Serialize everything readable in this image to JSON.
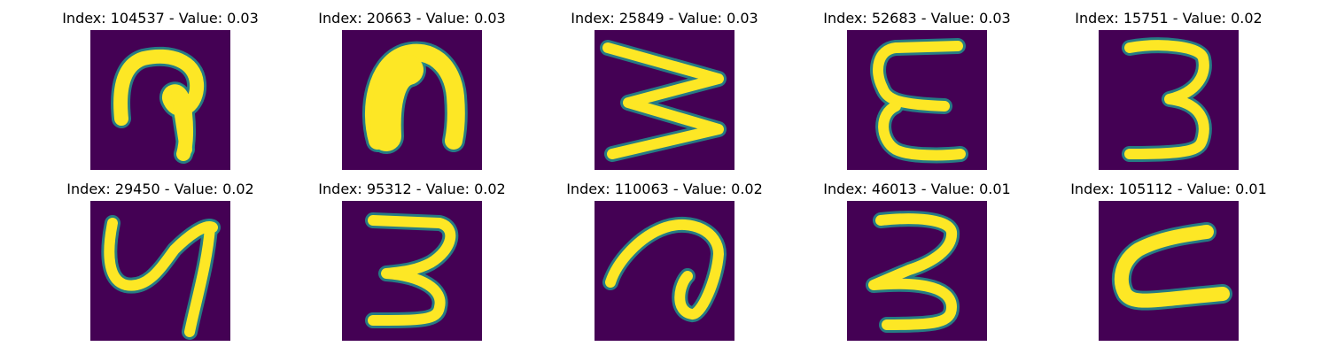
{
  "colors": {
    "background": "#440154",
    "mid_dark": "#3b528b",
    "mid": "#21908d",
    "mid_light": "#5dc962",
    "stroke": "#fde725"
  },
  "panels": [
    {
      "title": "Index: 104537 - Value: 0.03",
      "glyph": "hook-9"
    },
    {
      "title": "Index: 20663 - Value: 0.03",
      "glyph": "arch"
    },
    {
      "title": "Index: 25849 - Value: 0.03",
      "glyph": "zigzag"
    },
    {
      "title": "Index: 52683 - Value: 0.03",
      "glyph": "epsilon"
    },
    {
      "title": "Index: 15751 - Value: 0.02",
      "glyph": "three"
    },
    {
      "title": "Index: 29450 - Value: 0.02",
      "glyph": "y-loop"
    },
    {
      "title": "Index: 95312 - Value: 0.02",
      "glyph": "three"
    },
    {
      "title": "Index: 110063 - Value: 0.02",
      "glyph": "loop-a"
    },
    {
      "title": "Index: 46013 - Value: 0.01",
      "glyph": "three"
    },
    {
      "title": "Index: 105112 - Value: 0.01",
      "glyph": "c-shape"
    }
  ]
}
